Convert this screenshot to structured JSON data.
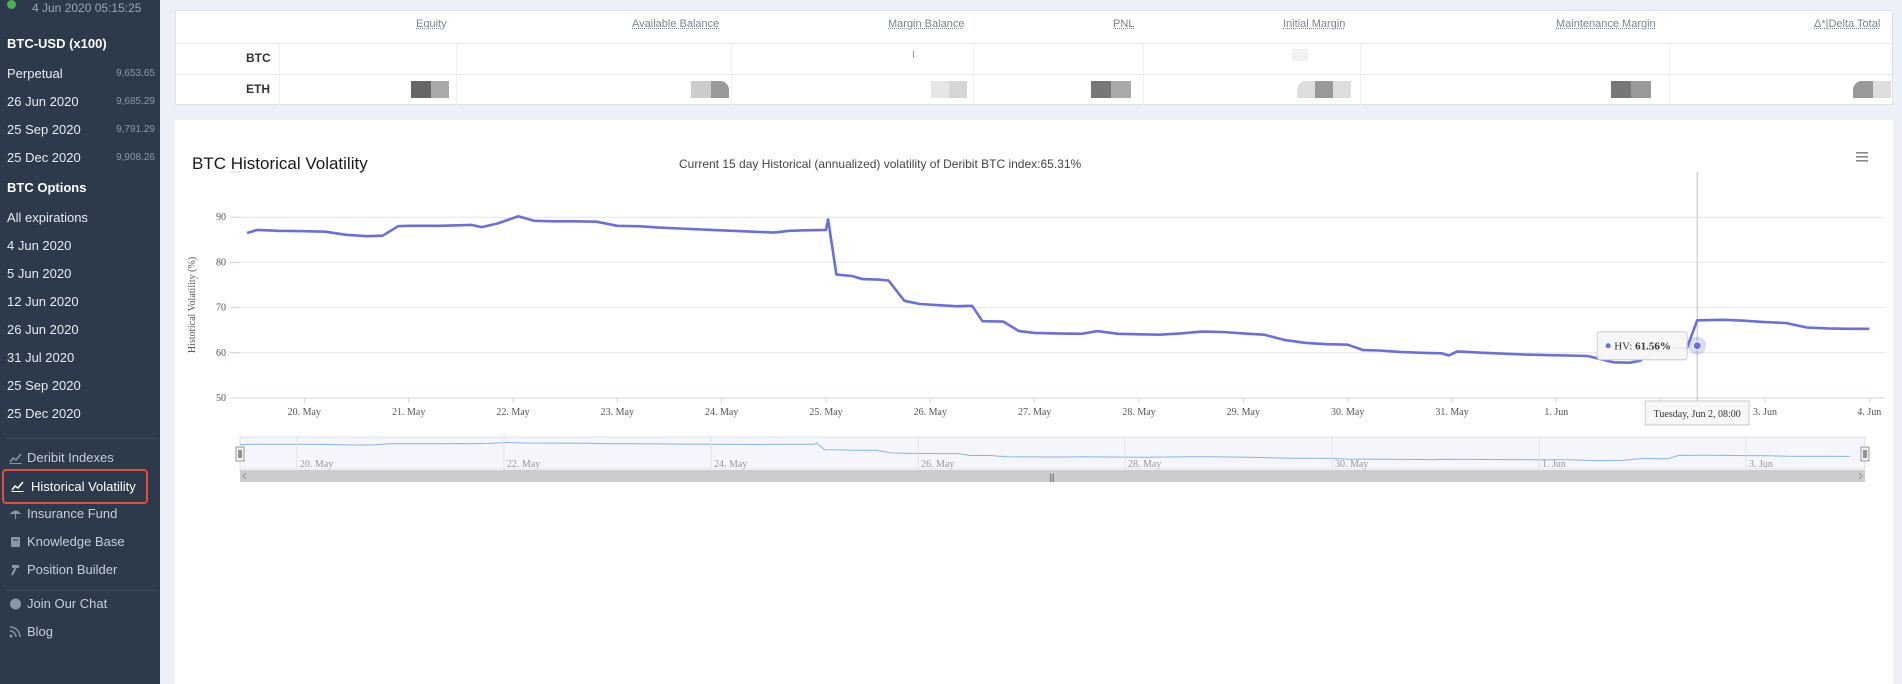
{
  "sidebar": {
    "timestamp": "4 Jun 2020 05:15:25",
    "futures_header": "BTC-USD (x100)",
    "futures": [
      {
        "label": "Perpetual",
        "price": "9,653.65"
      },
      {
        "label": "26 Jun 2020",
        "price": "9,685.29"
      },
      {
        "label": "25 Sep 2020",
        "price": "9,791.29"
      },
      {
        "label": "25 Dec 2020",
        "price": "9,908.26"
      }
    ],
    "options_header": "BTC Options",
    "options": [
      "All expirations",
      "4 Jun 2020",
      "5 Jun 2020",
      "12 Jun 2020",
      "26 Jun 2020",
      "31 Jul 2020",
      "25 Sep 2020",
      "25 Dec 2020"
    ],
    "nav": [
      {
        "label": "Deribit Indexes",
        "icon": "chart-line-icon"
      },
      {
        "label": "Historical Volatility",
        "icon": "chart-line-icon",
        "active": true
      },
      {
        "label": "Insurance Fund",
        "icon": "umbrella-icon"
      },
      {
        "label": "Knowledge Base",
        "icon": "book-icon"
      },
      {
        "label": "Position Builder",
        "icon": "hammer-icon"
      },
      {
        "label": "Join Our Chat",
        "icon": "chat-icon"
      },
      {
        "label": "Blog",
        "icon": "rss-icon"
      }
    ]
  },
  "summary_table": {
    "headers": [
      "Equity",
      "Available Balance",
      "Margin Balance",
      "PNL",
      "Initial Margin",
      "Maintenance Margin",
      "Δ*|Delta Total"
    ],
    "rows": [
      "BTC",
      "ETH"
    ]
  },
  "panel": {
    "title": "BTC Historical Volatility",
    "subtitle": "Current 15 day Historical (annualized) volatility of Deribit BTC index:65.31%"
  },
  "tooltip": {
    "label": "HV: ",
    "value": "61.56%",
    "date": "Tuesday, Jun 2, 08:00"
  },
  "colors": {
    "line": "#6b6fdc",
    "navigator": "#8ab4e6",
    "accent": "#e74c3c",
    "sidebar_bg": "#2d3a4b"
  },
  "chart_data": {
    "type": "line",
    "title": "BTC Historical Volatility",
    "ylabel": "Historical Volatility (%)",
    "ylim": [
      50,
      100
    ],
    "yticks": [
      50,
      60,
      70,
      80,
      90
    ],
    "xticks": [
      "20. May",
      "21. May",
      "22. May",
      "23. May",
      "24. May",
      "25. May",
      "26. May",
      "27. May",
      "28. May",
      "29. May",
      "30. May",
      "31. May",
      "1. Jun",
      "2. Jun",
      "3. Jun",
      "4. Jun"
    ],
    "navigator_ticks": [
      "20. May",
      "22. May",
      "24. May",
      "26. May",
      "28. May",
      "30. May",
      "1. Jun",
      "3. Jun"
    ],
    "series": [
      {
        "name": "HV",
        "x": [
          19.45,
          19.55,
          19.75,
          20.0,
          20.2,
          20.4,
          20.6,
          20.75,
          20.9,
          21.0,
          21.3,
          21.6,
          21.7,
          21.85,
          21.95,
          22.05,
          22.2,
          22.4,
          22.6,
          22.8,
          23.0,
          23.2,
          23.4,
          23.6,
          23.9,
          24.1,
          24.3,
          24.5,
          24.65,
          24.8,
          25.0,
          25.02,
          25.1,
          25.25,
          25.35,
          25.5,
          25.6,
          25.75,
          25.9,
          26.1,
          26.25,
          26.4,
          26.5,
          26.7,
          26.85,
          27.0,
          27.2,
          27.45,
          27.6,
          27.8,
          28.0,
          28.2,
          28.4,
          28.6,
          28.8,
          29.0,
          29.2,
          29.4,
          29.6,
          29.8,
          30.0,
          30.15,
          30.3,
          30.5,
          30.7,
          30.9,
          30.97,
          31.05,
          31.3,
          31.5,
          31.7,
          31.9,
          32.1,
          32.3,
          32.55,
          32.7,
          32.8,
          33.0,
          33.2,
          33.25,
          33.35,
          33.6,
          33.8,
          34.0,
          34.2,
          34.4,
          34.6,
          34.8,
          35.0
        ],
        "values": [
          86.5,
          87.2,
          87.0,
          86.9,
          86.8,
          86.1,
          85.8,
          85.9,
          88.0,
          88.1,
          88.1,
          88.3,
          87.8,
          88.6,
          89.4,
          90.2,
          89.2,
          89.1,
          89.1,
          89.0,
          88.1,
          88.0,
          87.7,
          87.5,
          87.2,
          87.0,
          86.8,
          86.6,
          87.0,
          87.1,
          87.2,
          89.5,
          77.3,
          77.0,
          76.3,
          76.2,
          76.0,
          71.5,
          70.8,
          70.5,
          70.3,
          70.4,
          67.0,
          66.9,
          64.8,
          64.4,
          64.3,
          64.2,
          64.8,
          64.2,
          64.1,
          64.0,
          64.3,
          64.7,
          64.6,
          64.3,
          64.0,
          62.8,
          62.2,
          61.9,
          61.8,
          60.6,
          60.5,
          60.2,
          60.0,
          59.9,
          59.4,
          60.3,
          60.0,
          59.8,
          59.6,
          59.5,
          59.4,
          59.3,
          57.9,
          57.8,
          58.2,
          61.6,
          61.0,
          61.0,
          67.2,
          67.3,
          67.1,
          66.8,
          66.6,
          65.6,
          65.4,
          65.3,
          65.3
        ]
      }
    ]
  }
}
